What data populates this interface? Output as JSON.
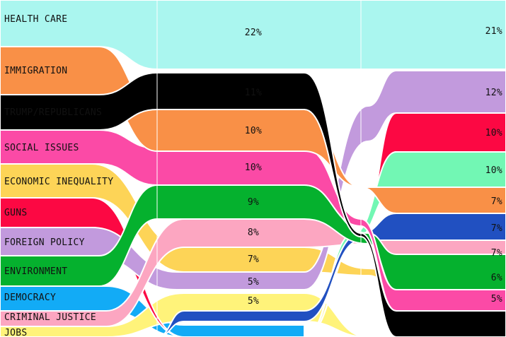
{
  "chart_data": {
    "type": "area",
    "title": "",
    "columns": [
      "",
      "",
      ""
    ],
    "series": [
      {
        "name": "HEALTH CARE",
        "values": [
          null,
          22,
          21
        ],
        "color": "#aaf6ef"
      },
      {
        "name": "IMMIGRATION",
        "values": [
          null,
          10,
          7
        ],
        "color": "#f99047"
      },
      {
        "name": "TRUMP/REPUBLICANS",
        "values": [
          null,
          11,
          null
        ],
        "color": "#000000"
      },
      {
        "name": "SOCIAL ISSUES",
        "values": [
          null,
          10,
          null
        ],
        "color": "#fb4aa6"
      },
      {
        "name": "ECONOMIC INEQUALITY",
        "values": [
          null,
          7,
          5
        ],
        "color": "#fdd457"
      },
      {
        "name": "GUNS",
        "values": [
          null,
          null,
          10
        ],
        "color": "#fc0843"
      },
      {
        "name": "FOREIGN POLICY",
        "values": [
          null,
          5,
          12
        ],
        "color": "#c29add"
      },
      {
        "name": "ENVIRONMENT",
        "values": [
          null,
          9,
          6
        ],
        "color": "#05b12e"
      },
      {
        "name": "DEMOCRACY",
        "values": [
          null,
          null,
          null
        ],
        "color": "#12abf6"
      },
      {
        "name": "CRIMINAL JUSTICE",
        "values": [
          null,
          8,
          7
        ],
        "color": "#fca6c1"
      },
      {
        "name": "JOBS",
        "values": [
          null,
          5,
          null
        ],
        "color": "#fff37a"
      }
    ],
    "extra_series": [
      {
        "name": "",
        "values": [
          null,
          null,
          10
        ],
        "color": "#72f7b4"
      },
      {
        "name": "",
        "values": [
          null,
          null,
          7
        ],
        "color": "#2150c1"
      }
    ]
  },
  "labels": {
    "col1_pct": [
      "22%",
      "11%",
      "10%",
      "10%",
      "9%",
      "8%",
      "7%",
      "5%",
      "5%"
    ],
    "col2_pct": [
      "21%",
      "12%",
      "10%",
      "10%",
      "7%",
      "7%",
      "7%",
      "6%",
      "5%"
    ]
  }
}
